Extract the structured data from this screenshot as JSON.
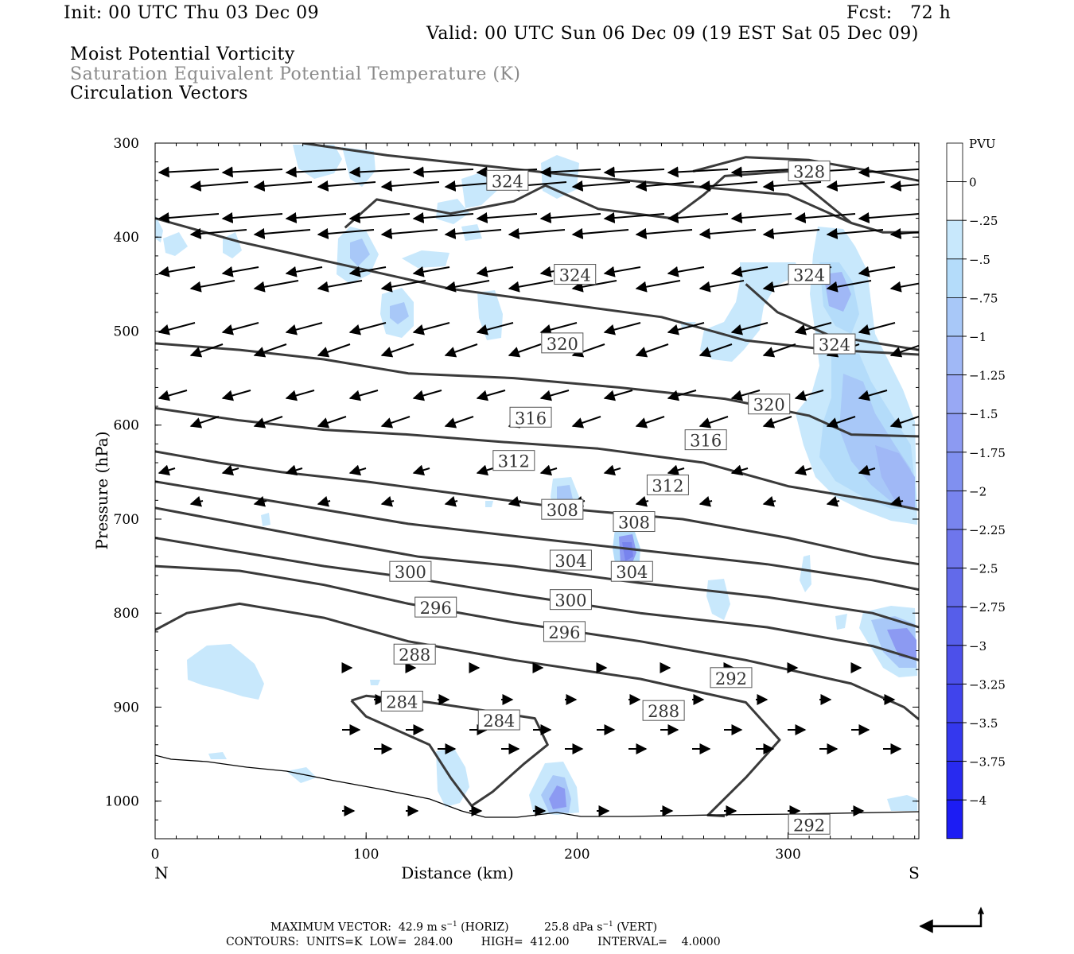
{
  "header": {
    "init": "Init: 00 UTC Thu 03 Dec 09",
    "fcst": "Fcst:   72 h",
    "valid": "Valid: 00 UTC Sun 06 Dec 09 (19 EST Sat 05 Dec 09)",
    "field1": "Moist Potential Vorticity",
    "field2": "Saturation Equivalent Potential Temperature (K)",
    "field3": "Circulation Vectors"
  },
  "chart_data": {
    "type": "contour-cross-section",
    "xlabel": "Distance (km)",
    "ylabel": "Pressure (hPa)",
    "xlim": [
      0,
      362
    ],
    "ylim": [
      1040,
      300
    ],
    "x_ticks": [
      "0",
      "100",
      "200",
      "300"
    ],
    "y_ticks": [
      "300",
      "400",
      "500",
      "600",
      "700",
      "800",
      "900",
      "1000"
    ],
    "x_end_labels": {
      "left": "N",
      "right": "S"
    },
    "colorbar": {
      "title": "PVU",
      "levels": [
        "0",
        "-.25",
        "-.5",
        "-.75",
        "-1",
        "-1.25",
        "-1.5",
        "-1.75",
        "-2",
        "-2.25",
        "-2.5",
        "-2.75",
        "-3",
        "-3.25",
        "-3.5",
        "-3.75",
        "-4"
      ],
      "colors": [
        "#ffffff",
        "#c8e8fc",
        "#b4dcfa",
        "#a8c8f8",
        "#a0b8f6",
        "#98a8f4",
        "#8c9af2",
        "#8090f0",
        "#7884ee",
        "#6e76ec",
        "#626aea",
        "#565eea",
        "#4c50ea",
        "#4044ec",
        "#3438ee",
        "#282af0",
        "#1c1cf4"
      ]
    },
    "contours": [
      {
        "label": "284",
        "points": [
          [
            93,
            893
          ],
          [
            100,
            910
          ],
          [
            115,
            925
          ],
          [
            130,
            940
          ],
          [
            140,
            975
          ],
          [
            150,
            1005
          ],
          [
            160,
            990
          ],
          [
            175,
            960
          ],
          [
            186,
            940
          ],
          [
            180,
            912
          ],
          [
            160,
            905
          ],
          [
            130,
            895
          ],
          [
            100,
            888
          ],
          [
            93,
            893
          ]
        ]
      },
      {
        "label": "288",
        "points": [
          [
            0,
            818
          ],
          [
            15,
            800
          ],
          [
            40,
            790
          ],
          [
            80,
            805
          ],
          [
            120,
            830
          ],
          [
            170,
            850
          ],
          [
            230,
            870
          ],
          [
            280,
            895
          ],
          [
            296,
            935
          ],
          [
            280,
            975
          ],
          [
            262,
            1015
          ],
          [
            270,
            1016
          ]
        ]
      },
      {
        "label": "292",
        "points": [
          [
            0,
            750
          ],
          [
            40,
            755
          ],
          [
            80,
            770
          ],
          [
            120,
            790
          ],
          [
            170,
            810
          ],
          [
            230,
            830
          ],
          [
            280,
            850
          ],
          [
            330,
            875
          ],
          [
            355,
            900
          ],
          [
            362,
            913
          ]
        ]
      },
      {
        "label": "296",
        "points": [
          [
            0,
            720
          ],
          [
            40,
            735
          ],
          [
            80,
            750
          ],
          [
            120,
            762
          ],
          [
            170,
            780
          ],
          [
            230,
            800
          ],
          [
            290,
            815
          ],
          [
            340,
            835
          ],
          [
            362,
            850
          ]
        ]
      },
      {
        "label": "300",
        "points": [
          [
            0,
            688
          ],
          [
            40,
            705
          ],
          [
            80,
            722
          ],
          [
            125,
            740
          ],
          [
            170,
            750
          ],
          [
            230,
            768
          ],
          [
            290,
            783
          ],
          [
            340,
            800
          ],
          [
            362,
            815
          ]
        ]
      },
      {
        "label": "304",
        "points": [
          [
            0,
            660
          ],
          [
            40,
            675
          ],
          [
            80,
            690
          ],
          [
            120,
            705
          ],
          [
            170,
            718
          ],
          [
            230,
            733
          ],
          [
            290,
            748
          ],
          [
            340,
            765
          ],
          [
            362,
            775
          ]
        ]
      },
      {
        "label": "308",
        "points": [
          [
            0,
            628
          ],
          [
            30,
            640
          ],
          [
            60,
            650
          ],
          [
            100,
            660
          ],
          [
            150,
            675
          ],
          [
            200,
            690
          ],
          [
            250,
            700
          ],
          [
            300,
            720
          ],
          [
            340,
            740
          ],
          [
            362,
            748
          ]
        ]
      },
      {
        "label": "312",
        "points": [
          [
            0,
            582
          ],
          [
            40,
            595
          ],
          [
            80,
            605
          ],
          [
            120,
            610
          ],
          [
            165,
            618
          ],
          [
            210,
            625
          ],
          [
            260,
            640
          ],
          [
            300,
            665
          ],
          [
            340,
            680
          ],
          [
            362,
            690
          ]
        ]
      },
      {
        "label": "316",
        "points": [
          [
            0,
            513
          ],
          [
            40,
            520
          ],
          [
            80,
            530
          ],
          [
            120,
            545
          ],
          [
            170,
            550
          ],
          [
            220,
            560
          ],
          [
            270,
            572
          ],
          [
            310,
            590
          ],
          [
            330,
            610
          ],
          [
            362,
            612
          ]
        ]
      },
      {
        "label": "320",
        "points": [
          [
            0,
            380
          ],
          [
            40,
            405
          ],
          [
            90,
            430
          ],
          [
            140,
            455
          ],
          [
            190,
            470
          ],
          [
            240,
            485
          ],
          [
            280,
            510
          ],
          [
            320,
            520
          ],
          [
            362,
            525
          ]
        ]
      },
      {
        "label": "324",
        "points": [
          [
            70,
            300
          ],
          [
            110,
            313
          ],
          [
            160,
            325
          ],
          [
            200,
            335
          ],
          [
            250,
            345
          ],
          [
            300,
            355
          ],
          [
            330,
            385
          ],
          [
            345,
            395
          ],
          [
            362,
            395
          ]
        ]
      },
      {
        "label": "324",
        "points": [
          [
            90,
            390
          ],
          [
            105,
            360
          ],
          [
            140,
            375
          ],
          [
            170,
            362
          ],
          [
            185,
            345
          ],
          [
            210,
            370
          ],
          [
            245,
            380
          ],
          [
            260,
            355
          ],
          [
            270,
            335
          ],
          [
            300,
            330
          ],
          [
            330,
            385
          ]
        ]
      },
      {
        "label": "328",
        "points": [
          [
            255,
            330
          ],
          [
            280,
            315
          ],
          [
            310,
            318
          ],
          [
            340,
            330
          ],
          [
            362,
            340
          ]
        ]
      },
      {
        "label": "328",
        "points": [
          [
            280,
            450
          ],
          [
            295,
            480
          ],
          [
            320,
            505
          ],
          [
            362,
            520
          ]
        ]
      }
    ],
    "contour_labels": [
      {
        "text": "324",
        "x": 167,
        "y": 340
      },
      {
        "text": "328",
        "x": 310,
        "y": 330
      },
      {
        "text": "324",
        "x": 199,
        "y": 440
      },
      {
        "text": "324",
        "x": 310,
        "y": 440
      },
      {
        "text": "324",
        "x": 322,
        "y": 514
      },
      {
        "text": "320",
        "x": 193,
        "y": 513
      },
      {
        "text": "320",
        "x": 291,
        "y": 578
      },
      {
        "text": "316",
        "x": 178,
        "y": 592
      },
      {
        "text": "316",
        "x": 261,
        "y": 616
      },
      {
        "text": "312",
        "x": 170,
        "y": 638
      },
      {
        "text": "312",
        "x": 243,
        "y": 664
      },
      {
        "text": "308",
        "x": 193,
        "y": 690
      },
      {
        "text": "308",
        "x": 227,
        "y": 703
      },
      {
        "text": "304",
        "x": 197,
        "y": 744
      },
      {
        "text": "304",
        "x": 226,
        "y": 756
      },
      {
        "text": "300",
        "x": 121,
        "y": 756
      },
      {
        "text": "300",
        "x": 197,
        "y": 786
      },
      {
        "text": "296",
        "x": 133,
        "y": 794
      },
      {
        "text": "296",
        "x": 194,
        "y": 820
      },
      {
        "text": "288",
        "x": 123,
        "y": 844
      },
      {
        "text": "292",
        "x": 273,
        "y": 869
      },
      {
        "text": "284",
        "x": 117,
        "y": 894
      },
      {
        "text": "284",
        "x": 163,
        "y": 914
      },
      {
        "text": "288",
        "x": 241,
        "y": 904
      },
      {
        "text": "292",
        "x": 310,
        "y": 1025
      }
    ],
    "vectors_note": "",
    "footer": {
      "max_vector": "MAXIMUM VECTOR:  42.9 m s",
      "max_vector_horiz": "(HORIZ)",
      "max_vector_vert": "25.8 dPa s",
      "max_vector_vert_unit": "(VERT)",
      "contours": "CONTOURS:  UNITS=K  LOW=  284.00        HIGH=  412.00        INTERVAL=    4.0000"
    }
  }
}
